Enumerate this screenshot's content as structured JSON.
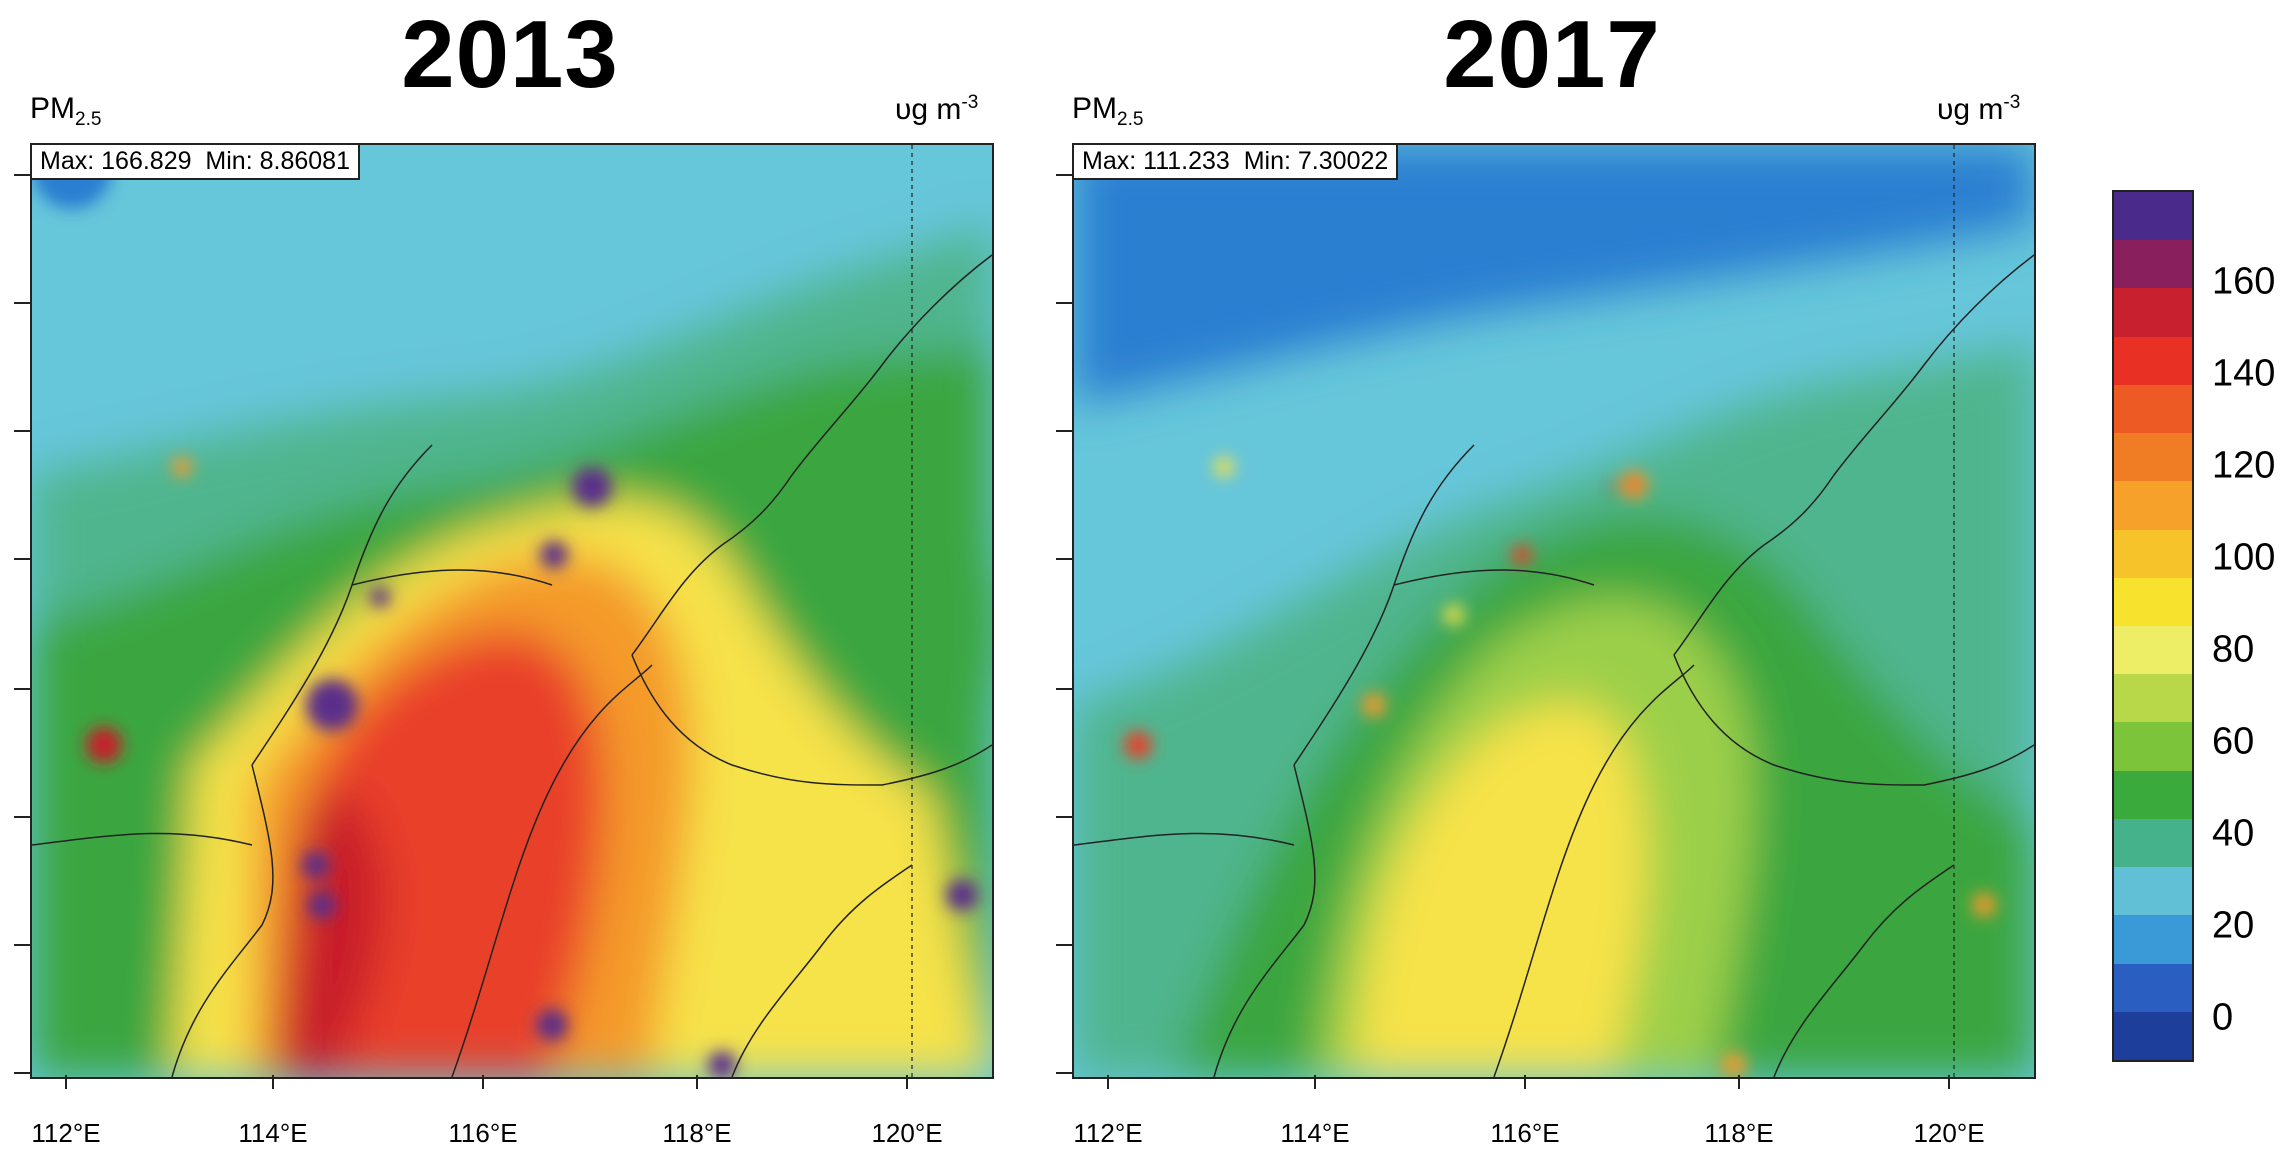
{
  "panels": [
    {
      "year": "2013",
      "variable_main": "PM",
      "variable_sub": "2.5",
      "unit_main": "υg m",
      "unit_sup": "-3",
      "max_label": "Max:",
      "max_value": "166.829",
      "min_label": "Min:",
      "min_value": "8.86081",
      "x_ticks": [
        "112°E",
        "114°E",
        "116°E",
        "118°E",
        "120°E"
      ]
    },
    {
      "year": "2017",
      "variable_main": "PM",
      "variable_sub": "2.5",
      "unit_main": "υg m",
      "unit_sup": "-3",
      "max_label": "Max:",
      "max_value": "111.233",
      "min_label": "Min:",
      "min_value": "7.30022",
      "x_ticks": [
        "112°E",
        "114°E",
        "116°E",
        "118°E",
        "120°E"
      ]
    }
  ],
  "colorbar": {
    "labels": [
      "160",
      "140",
      "120",
      "100",
      "80",
      "60",
      "40",
      "20",
      "0"
    ],
    "colors_top_to_bottom": [
      "#4a2a8a",
      "#8a1f5e",
      "#c8202e",
      "#e83024",
      "#ee5a24",
      "#f07c24",
      "#f6a22a",
      "#f6c42a",
      "#f7e22e",
      "#eeee66",
      "#b8d84a",
      "#7cc43a",
      "#3aaa3c",
      "#46b28c",
      "#62c0d6",
      "#3a9ad8",
      "#2a5ec0",
      "#1e3e9c"
    ]
  },
  "palette": {
    "deep_blue": "#2c7fd1",
    "cyan": "#66c6da",
    "teal": "#4fb58e",
    "green": "#3aa640",
    "lightgreen": "#9ccf4a",
    "yellow": "#f6e24a",
    "gold": "#f8c22e",
    "orange": "#f49a2a",
    "red": "#e9412a",
    "crimson": "#c81e2a",
    "purple": "#5a2f8a"
  }
}
